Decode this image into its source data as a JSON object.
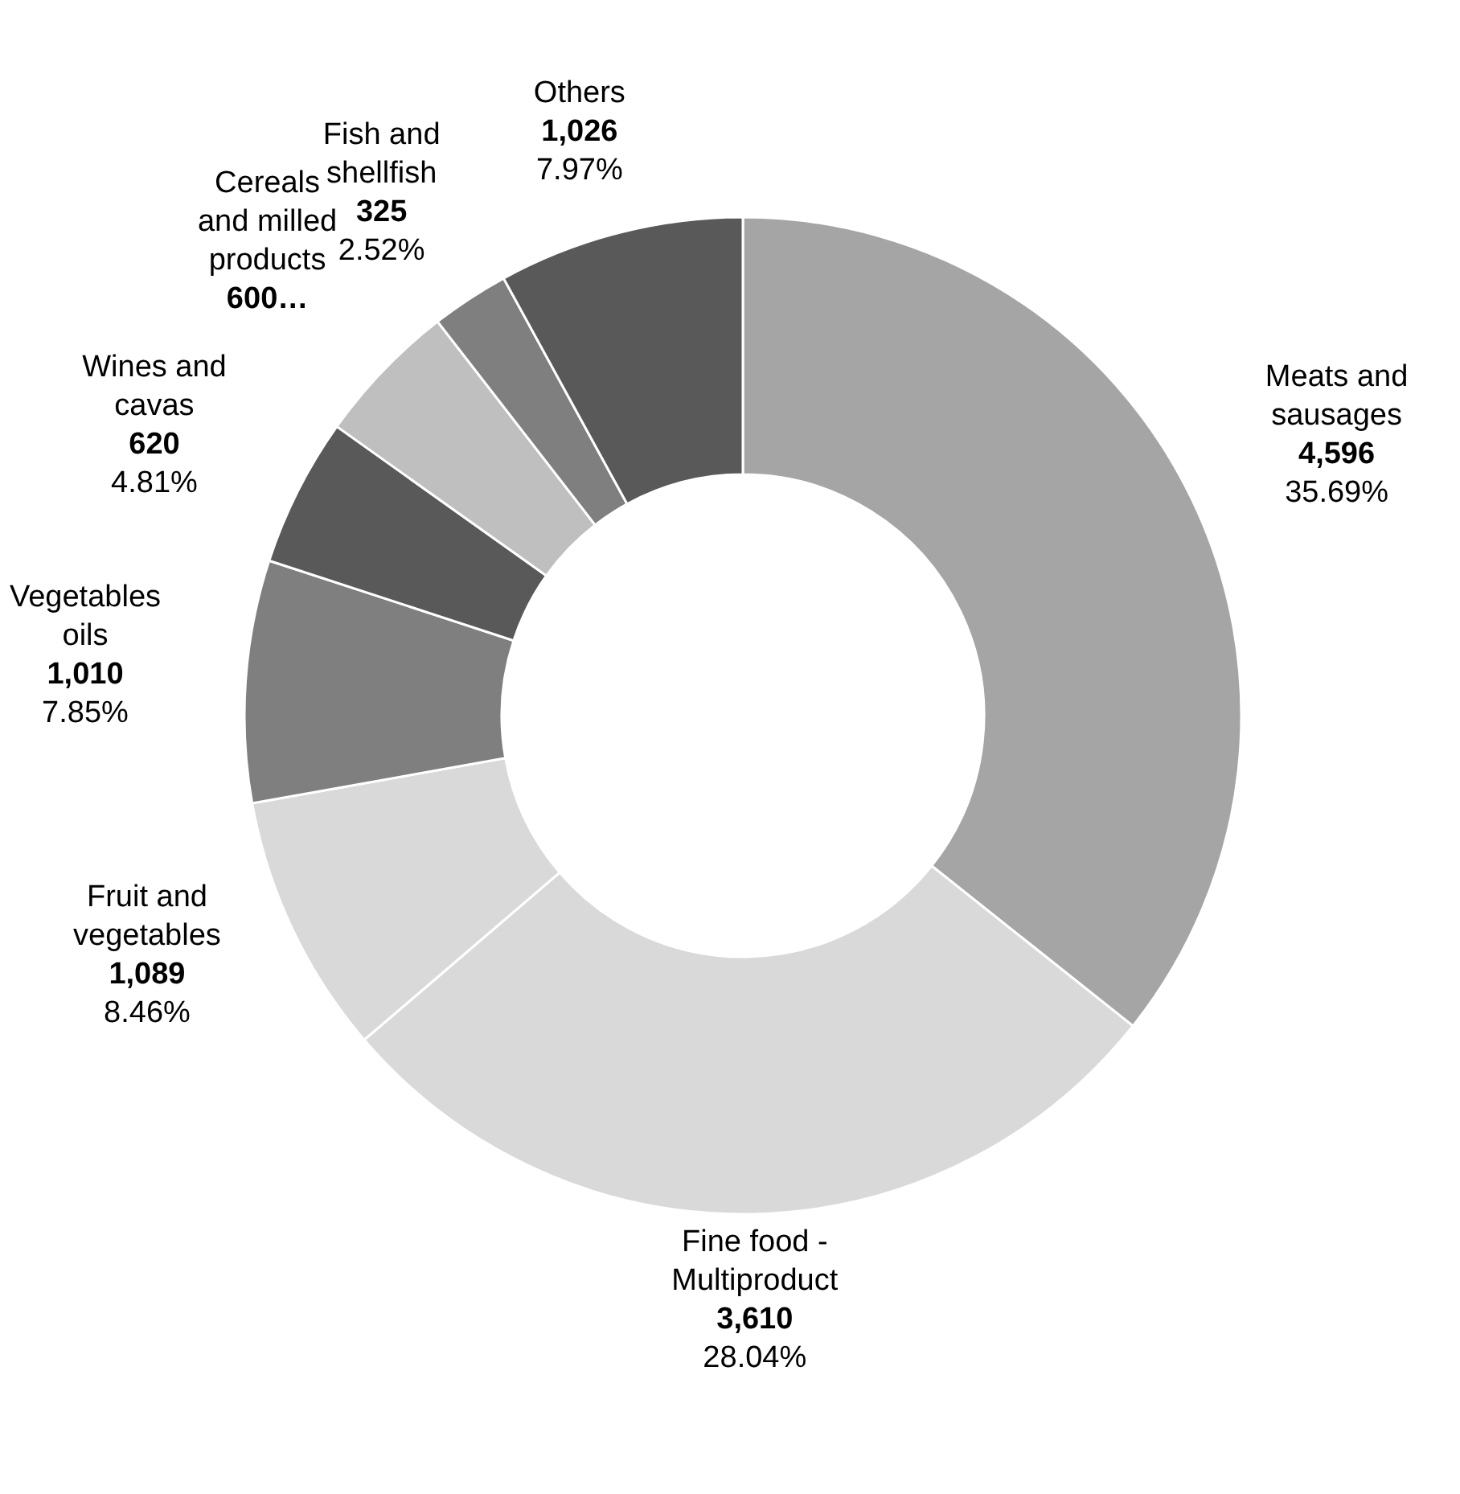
{
  "chart_data": {
    "type": "donut",
    "categories": [
      "Meats and sausages",
      "Fine food - Multiproduct",
      "Fruit and vegetables",
      "Vegetables oils",
      "Wines and cavas",
      "Cereals and milled products",
      "Fish and shellfish",
      "Others"
    ],
    "values": [
      4596,
      3610,
      1089,
      1010,
      620,
      600,
      325,
      1026
    ],
    "colors": [
      "#a5a5a5",
      "#d9d9d9",
      "#d9d9d9",
      "#7f7f7f",
      "#595959",
      "#bfbfbf",
      "#7f7f7f",
      "#595959"
    ],
    "value_labels": [
      "4,596",
      "3,610",
      "1,089",
      "1,010",
      "620",
      "600…",
      "325",
      "1,026"
    ],
    "annotations": [
      {
        "text": "35.69%",
        "x": "Meats and sausages"
      },
      {
        "text": "28.04%",
        "x": "Fine food - Multiproduct"
      },
      {
        "text": "8.46%",
        "x": "Fruit and vegetables"
      },
      {
        "text": "7.85%",
        "x": "Vegetables oils"
      },
      {
        "text": "4.81%",
        "x": "Wines and cavas"
      },
      {
        "text": "2.52%",
        "x": "Fish and shellfish"
      },
      {
        "text": "7.97%",
        "x": "Others"
      }
    ]
  }
}
